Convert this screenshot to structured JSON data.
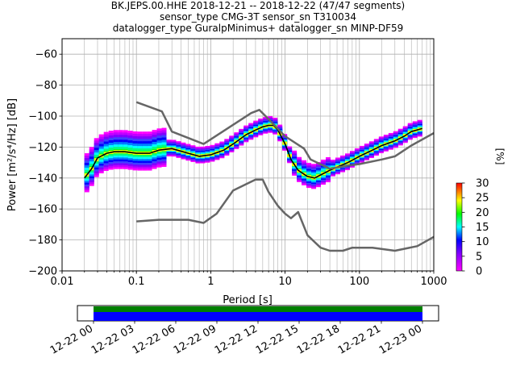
{
  "title_lines": [
    "BK.JEPS.00.HHE   2018-12-21 -- 2018-12-22  (47/47 segments)",
    "sensor_type CMG-3T sensor_sn T310034",
    "datalogger_type GuralpMinimus+ datalogger_sn MINP-DF59"
  ],
  "chart_data": {
    "type": "line",
    "title": "BK.JEPS.00.HHE   2018-12-21 -- 2018-12-22  (47/47 segments)",
    "xlabel": "Period [s]",
    "ylabel": "Power [m²/s⁴/Hz] [dB]",
    "xscale": "log",
    "xlim": [
      0.01,
      1000
    ],
    "ylim": [
      -200,
      -50
    ],
    "xticks": [
      0.01,
      0.1,
      1,
      10,
      100,
      1000
    ],
    "xtick_labels": [
      "0.01",
      "0.1",
      "1",
      "10",
      "100",
      "1000"
    ],
    "yticks": [
      -200,
      -180,
      -160,
      -140,
      -120,
      -100,
      -80,
      -60
    ],
    "ytick_labels": [
      "−200",
      "−180",
      "−160",
      "−140",
      "−120",
      "−100",
      "−80",
      "−60"
    ],
    "grid": true,
    "series": [
      {
        "name": "",
        "color": "#000000",
        "x": [
          0.02,
          0.025,
          0.03,
          0.04,
          0.05,
          0.07,
          0.1,
          0.15,
          0.2,
          0.3,
          0.5,
          0.7,
          1,
          1.5,
          2,
          3,
          4,
          5,
          6,
          7,
          8,
          10,
          12,
          15,
          20,
          25,
          30,
          40,
          50,
          70,
          100,
          150,
          200,
          300,
          400,
          500,
          700
        ],
        "y": [
          -140,
          -134,
          -127,
          -124,
          -123,
          -123,
          -124,
          -124,
          -122,
          -121,
          -124,
          -126,
          -125,
          -122,
          -118,
          -112,
          -109,
          -107,
          -106,
          -106,
          -109,
          -118,
          -128,
          -135,
          -139,
          -140,
          -138,
          -135,
          -133,
          -130,
          -126,
          -122,
          -119,
          -116,
          -113,
          -110,
          -108
        ]
      },
      {
        "name": "",
        "color": "#666666",
        "x": [
          0.1,
          0.22,
          0.3,
          0.8,
          3.5,
          4.5,
          6,
          10,
          18,
          22,
          40,
          70,
          100,
          200,
          300,
          500,
          1000
        ],
        "y": [
          -91,
          -97,
          -110,
          -118,
          -98,
          -96,
          -102,
          -113,
          -121,
          -128,
          -134,
          -132,
          -131,
          -128,
          -126,
          -119,
          -111
        ]
      },
      {
        "name": "",
        "color": "#666666",
        "x": [
          0.1,
          0.2,
          0.5,
          0.8,
          1.2,
          2,
          4,
          5,
          6,
          8,
          10,
          12,
          15,
          20,
          30,
          40,
          60,
          80,
          100,
          150,
          300,
          600,
          1000
        ],
        "y": [
          -168,
          -167,
          -167,
          -169,
          -163,
          -148,
          -141,
          -141,
          -149,
          -158,
          -163,
          -166,
          -162,
          -177,
          -185,
          -187,
          -187,
          -185,
          -185,
          -185,
          -187,
          -184,
          -178
        ]
      }
    ],
    "colorbar": {
      "label": "[%]",
      "range": [
        0,
        30
      ],
      "ticks": [
        0,
        5,
        10,
        15,
        20,
        25,
        30
      ]
    },
    "time_axis": {
      "tick_labels": [
        "12-22 00",
        "12-22 03",
        "12-22 06",
        "12-22 09",
        "12-22 12",
        "12-22 15",
        "12-22 18",
        "12-22 21",
        "12-23 00"
      ]
    }
  }
}
